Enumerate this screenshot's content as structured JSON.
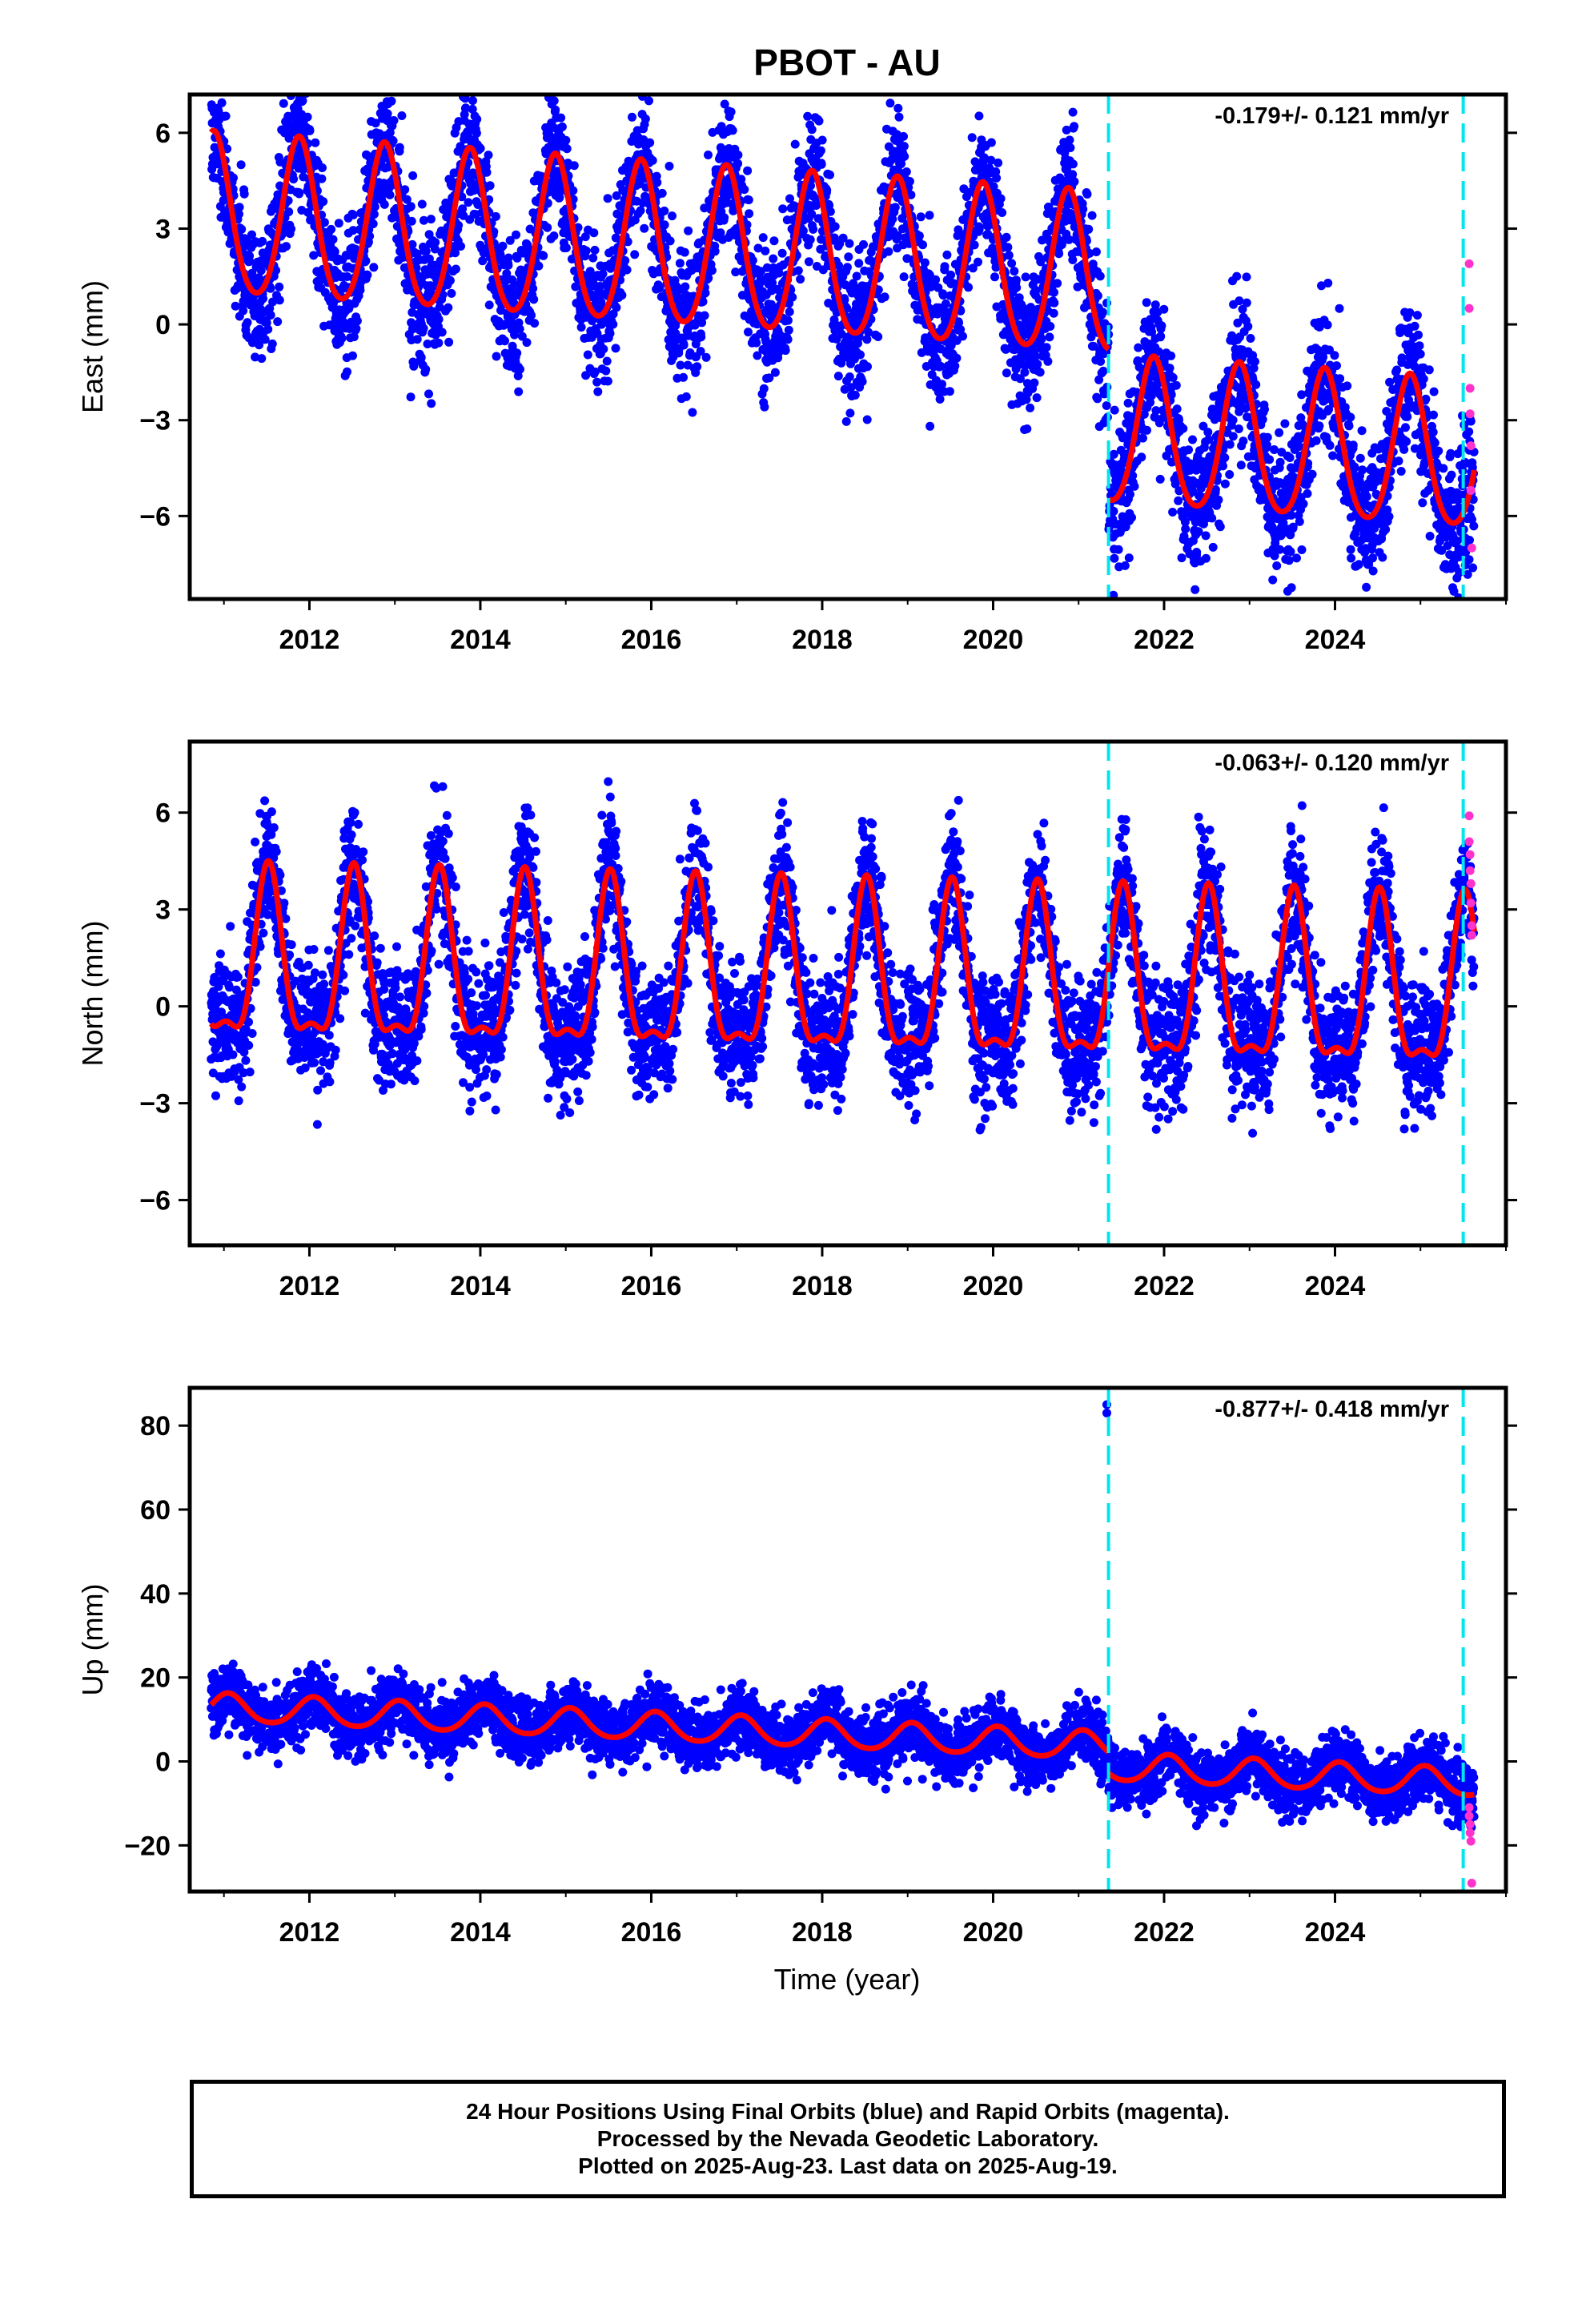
{
  "title": "PBOT - AU",
  "xlabel": "Time (year)",
  "colors": {
    "final_orbits": "#0000ff",
    "rapid_orbits": "#ff33cc",
    "model_fit": "#ff0000",
    "event_lines": "#00e5ee"
  },
  "caption": {
    "line1": "24 Hour Positions Using Final Orbits (blue) and Rapid Orbits (magenta).",
    "line2": "Processed by the Nevada Geodetic Laboratory.",
    "line3": "Plotted on 2025-Aug-23. Last data on 2025-Aug-19."
  },
  "chart_data": [
    {
      "type": "scatter",
      "component": "East",
      "ylabel": "East (mm)",
      "rate_label": "-0.179+/- 0.121 mm/yr",
      "xlim": [
        2010.6,
        2026.0
      ],
      "ylim": [
        -8.6,
        7.2
      ],
      "xticks": [
        2012,
        2014,
        2016,
        2018,
        2020,
        2022,
        2024
      ],
      "yticks": [
        -6,
        -3,
        0,
        3,
        6
      ],
      "event_lines_x": [
        2021.35,
        2025.5
      ],
      "data_span": [
        2010.85,
        2025.63
      ],
      "model": {
        "segments": [
          {
            "t0": 2010.85,
            "t1": 2021.35,
            "offset": 2.0,
            "rate": -0.179,
            "annual_amplitude": 2.5,
            "semiannual_amplitude": 0.3,
            "phase_peak": 0.88
          },
          {
            "t0": 2021.35,
            "t1": 2025.63,
            "offset": -2.9,
            "rate": -0.179,
            "annual_amplitude": 2.3,
            "semiannual_amplitude": 0.3,
            "phase_peak": 0.88
          }
        ],
        "noise_mm": 1.05
      },
      "rapid_points": [
        {
          "x": 2025.57,
          "y": 1.9
        },
        {
          "x": 2025.57,
          "y": 0.5
        },
        {
          "x": 2025.58,
          "y": -2.0
        },
        {
          "x": 2025.58,
          "y": -2.8
        },
        {
          "x": 2025.59,
          "y": -3.8
        },
        {
          "x": 2025.59,
          "y": -5.2
        },
        {
          "x": 2025.6,
          "y": -7.0
        }
      ]
    },
    {
      "type": "scatter",
      "component": "North",
      "ylabel": "North (mm)",
      "rate_label": "-0.063+/- 0.120 mm/yr",
      "xlim": [
        2010.6,
        2026.0
      ],
      "ylim": [
        -7.4,
        8.2
      ],
      "xticks": [
        2012,
        2014,
        2016,
        2018,
        2020,
        2022,
        2024
      ],
      "yticks": [
        -6,
        -3,
        0,
        3,
        6
      ],
      "event_lines_x": [
        2021.35,
        2025.5
      ],
      "data_span": [
        2010.85,
        2025.63
      ],
      "model": {
        "segments": [
          {
            "t0": 2010.85,
            "t1": 2025.63,
            "offset": 0.7,
            "rate": -0.063,
            "annual_amplitude": 2.5,
            "semiannual_amplitude": 0.9,
            "phase_peak": 0.52
          }
        ],
        "noise_mm": 1.0
      },
      "rapid_points": [
        {
          "x": 2025.57,
          "y": 5.9
        },
        {
          "x": 2025.57,
          "y": 5.1
        },
        {
          "x": 2025.58,
          "y": 4.7
        },
        {
          "x": 2025.58,
          "y": 4.2
        },
        {
          "x": 2025.59,
          "y": 3.8
        },
        {
          "x": 2025.59,
          "y": 3.2
        },
        {
          "x": 2025.6,
          "y": 2.5
        },
        {
          "x": 2025.6,
          "y": 2.2
        }
      ]
    },
    {
      "type": "scatter",
      "component": "Up",
      "ylabel": "Up (mm)",
      "rate_label": "-0.877+/- 0.418 mm/yr",
      "xlim": [
        2010.6,
        2026.0
      ],
      "ylim": [
        -31,
        89
      ],
      "xticks": [
        2012,
        2014,
        2016,
        2018,
        2020,
        2022,
        2024
      ],
      "yticks": [
        -20,
        0,
        20,
        40,
        60,
        80
      ],
      "event_lines_x": [
        2021.35,
        2025.5
      ],
      "data_span": [
        2010.85,
        2025.63
      ],
      "model": {
        "segments": [
          {
            "t0": 2010.85,
            "t1": 2021.35,
            "offset": 6.5,
            "rate": -0.877,
            "annual_amplitude": 3.3,
            "semiannual_amplitude": 0.4,
            "phase_peak": 0.05
          },
          {
            "t0": 2021.35,
            "t1": 2025.63,
            "offset": 1.5,
            "rate": -0.877,
            "annual_amplitude": 3.3,
            "semiannual_amplitude": 0.4,
            "phase_peak": 0.05
          }
        ],
        "noise_mm": 3.6
      },
      "outlier_points": [
        {
          "x": 2021.33,
          "y": 85
        },
        {
          "x": 2021.33,
          "y": 83
        }
      ],
      "rapid_points": [
        {
          "x": 2025.57,
          "y": -11
        },
        {
          "x": 2025.57,
          "y": -13
        },
        {
          "x": 2025.58,
          "y": -15
        },
        {
          "x": 2025.58,
          "y": -17
        },
        {
          "x": 2025.59,
          "y": -19
        },
        {
          "x": 2025.6,
          "y": -29
        }
      ]
    }
  ]
}
